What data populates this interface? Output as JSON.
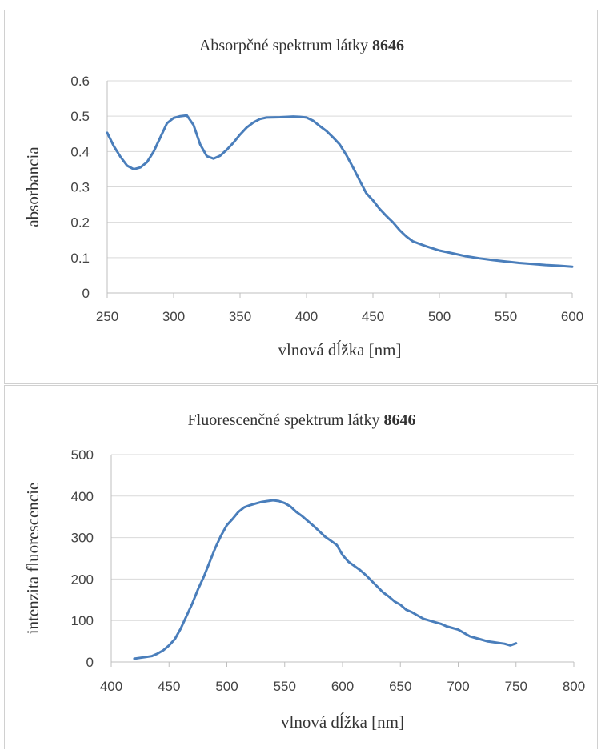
{
  "chart_data": [
    {
      "id": "absorption",
      "type": "line",
      "title_prefix": "Absorpčné spektrum látky ",
      "title_bold": "8646",
      "xlabel": "vlnová dĺžka [nm]",
      "ylabel": "absorbancia",
      "xlim": [
        250,
        600
      ],
      "ylim": [
        0,
        0.6
      ],
      "xticks": [
        250,
        300,
        350,
        400,
        450,
        500,
        550,
        600
      ],
      "yticks": [
        0,
        0.1,
        0.2,
        0.3,
        0.4,
        0.5,
        0.6
      ],
      "ytick_labels": [
        "0",
        "0.1",
        "0.2",
        "0.3",
        "0.4",
        "0.5",
        "0.6"
      ],
      "grid": true,
      "series": [
        {
          "color": "#4a7ebb",
          "x": [
            250,
            255,
            260,
            265,
            270,
            275,
            280,
            285,
            290,
            295,
            300,
            305,
            310,
            315,
            320,
            325,
            330,
            335,
            340,
            345,
            350,
            355,
            360,
            365,
            370,
            380,
            390,
            395,
            400,
            405,
            410,
            415,
            420,
            425,
            430,
            435,
            440,
            445,
            450,
            455,
            460,
            465,
            470,
            475,
            480,
            490,
            500,
            510,
            520,
            530,
            540,
            550,
            560,
            570,
            580,
            590,
            600
          ],
          "y": [
            0.453,
            0.415,
            0.385,
            0.36,
            0.35,
            0.355,
            0.37,
            0.4,
            0.44,
            0.48,
            0.495,
            0.5,
            0.502,
            0.475,
            0.42,
            0.387,
            0.38,
            0.388,
            0.405,
            0.425,
            0.448,
            0.468,
            0.482,
            0.492,
            0.496,
            0.497,
            0.499,
            0.498,
            0.496,
            0.487,
            0.472,
            0.458,
            0.44,
            0.42,
            0.39,
            0.355,
            0.318,
            0.282,
            0.262,
            0.238,
            0.218,
            0.2,
            0.178,
            0.16,
            0.146,
            0.132,
            0.12,
            0.112,
            0.104,
            0.098,
            0.093,
            0.089,
            0.085,
            0.082,
            0.079,
            0.077,
            0.074
          ]
        }
      ]
    },
    {
      "id": "fluorescence",
      "type": "line",
      "title_prefix": "Fluorescenčné spektrum látky ",
      "title_bold": "8646",
      "xlabel": "vlnová dĺžka [nm]",
      "ylabel": "intenzita fluorescencie",
      "xlim": [
        400,
        800
      ],
      "ylim": [
        0,
        500
      ],
      "xticks": [
        400,
        450,
        500,
        550,
        600,
        650,
        700,
        750,
        800
      ],
      "yticks": [
        0,
        100,
        200,
        300,
        400,
        500
      ],
      "ytick_labels": [
        "0",
        "100",
        "200",
        "300",
        "400",
        "500"
      ],
      "grid": true,
      "series": [
        {
          "color": "#4a7ebb",
          "x": [
            420,
            425,
            430,
            435,
            440,
            445,
            450,
            455,
            460,
            465,
            470,
            475,
            480,
            485,
            490,
            495,
            500,
            505,
            510,
            515,
            520,
            525,
            530,
            535,
            540,
            545,
            550,
            555,
            560,
            565,
            570,
            575,
            580,
            585,
            590,
            595,
            600,
            605,
            610,
            615,
            620,
            625,
            630,
            635,
            640,
            645,
            650,
            655,
            660,
            665,
            670,
            675,
            680,
            685,
            690,
            695,
            700,
            705,
            710,
            715,
            720,
            725,
            730,
            735,
            740,
            745,
            750
          ],
          "y": [
            8,
            10,
            12,
            14,
            20,
            28,
            40,
            55,
            80,
            110,
            140,
            175,
            205,
            240,
            275,
            305,
            330,
            345,
            362,
            373,
            378,
            382,
            386,
            388,
            390,
            388,
            383,
            375,
            362,
            352,
            340,
            328,
            315,
            302,
            292,
            282,
            258,
            242,
            232,
            222,
            210,
            196,
            182,
            168,
            158,
            146,
            138,
            126,
            120,
            112,
            104,
            100,
            96,
            92,
            86,
            82,
            78,
            70,
            62,
            58,
            54,
            50,
            48,
            46,
            44,
            40,
            45
          ]
        }
      ]
    }
  ]
}
